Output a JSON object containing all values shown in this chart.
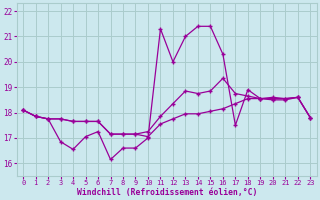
{
  "xlabel": "Windchill (Refroidissement éolien,°C)",
  "bg_color": "#cce8ee",
  "grid_color": "#aacccc",
  "line_color": "#990099",
  "ylim": [
    15.5,
    22.3
  ],
  "xlim": [
    -0.5,
    23.5
  ],
  "yticks": [
    16,
    17,
    18,
    19,
    20,
    21,
    22
  ],
  "xticks": [
    0,
    1,
    2,
    3,
    4,
    5,
    6,
    7,
    8,
    9,
    10,
    11,
    12,
    13,
    14,
    15,
    16,
    17,
    18,
    19,
    20,
    21,
    22,
    23
  ],
  "series": [
    [
      18.1,
      17.85,
      17.75,
      16.85,
      16.55,
      17.05,
      17.25,
      16.15,
      16.6,
      16.6,
      17.0,
      21.3,
      20.0,
      21.0,
      21.4,
      21.4,
      20.3,
      17.5,
      18.9,
      18.55,
      18.55,
      18.55,
      18.6,
      17.8
    ],
    [
      18.1,
      17.85,
      17.75,
      17.75,
      17.65,
      17.65,
      17.65,
      17.15,
      17.15,
      17.15,
      17.05,
      17.55,
      17.75,
      17.95,
      17.95,
      18.05,
      18.15,
      18.35,
      18.55,
      18.55,
      18.6,
      18.55,
      18.6,
      17.8
    ],
    [
      18.1,
      17.85,
      17.75,
      17.75,
      17.65,
      17.65,
      17.65,
      17.15,
      17.15,
      17.15,
      17.25,
      17.85,
      18.35,
      18.85,
      18.75,
      18.85,
      19.35,
      18.75,
      18.65,
      18.55,
      18.5,
      18.5,
      18.6,
      17.8
    ]
  ]
}
